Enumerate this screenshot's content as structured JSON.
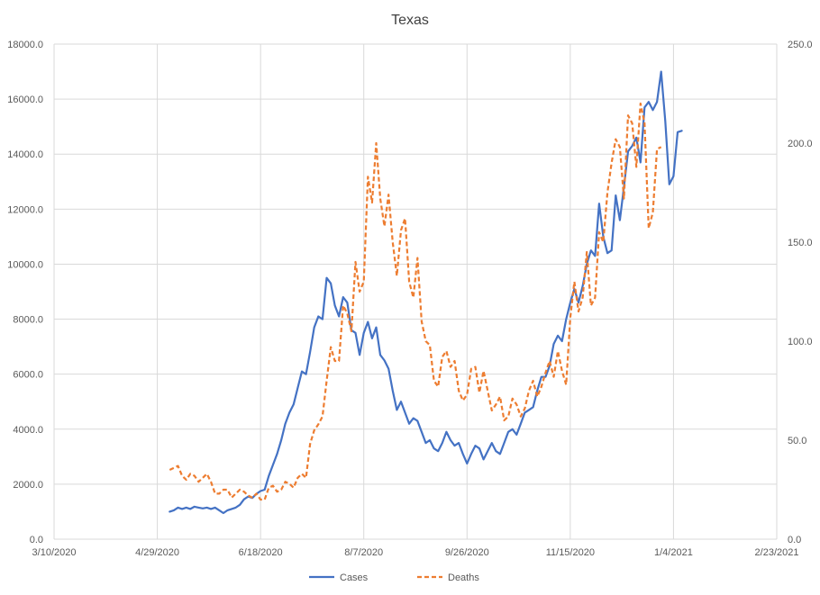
{
  "chart_data": {
    "type": "line",
    "title": "Texas",
    "grid": true,
    "legend_position": "bottom",
    "x_axis": {
      "type": "date",
      "min": "2020-03-10",
      "max": "2021-02-23",
      "tick_labels": [
        "3/10/2020",
        "4/29/2020",
        "6/18/2020",
        "8/7/2020",
        "9/26/2020",
        "11/15/2020",
        "1/4/2021",
        "2/23/2021"
      ]
    },
    "y_axis_left": {
      "min": 0,
      "max": 18000,
      "tick_labels": [
        "0.0",
        "2000.0",
        "4000.0",
        "6000.0",
        "8000.0",
        "10000.0",
        "12000.0",
        "14000.0",
        "16000.0",
        "18000.0"
      ]
    },
    "y_axis_right": {
      "min": 0,
      "max": 250,
      "tick_labels": [
        "0.0",
        "50.0",
        "100.0",
        "150.0",
        "200.0",
        "250.0"
      ]
    },
    "series": [
      {
        "name": "Cases",
        "axis": "left",
        "color": "#4472C4",
        "dash": "solid",
        "points": [
          [
            "2020-05-05",
            1000
          ],
          [
            "2020-05-07",
            1050
          ],
          [
            "2020-05-09",
            1150
          ],
          [
            "2020-05-11",
            1100
          ],
          [
            "2020-05-13",
            1150
          ],
          [
            "2020-05-15",
            1100
          ],
          [
            "2020-05-17",
            1180
          ],
          [
            "2020-05-19",
            1150
          ],
          [
            "2020-05-21",
            1120
          ],
          [
            "2020-05-23",
            1150
          ],
          [
            "2020-05-25",
            1100
          ],
          [
            "2020-05-27",
            1150
          ],
          [
            "2020-05-29",
            1050
          ],
          [
            "2020-05-31",
            950
          ],
          [
            "2020-06-02",
            1050
          ],
          [
            "2020-06-04",
            1100
          ],
          [
            "2020-06-06",
            1150
          ],
          [
            "2020-06-08",
            1250
          ],
          [
            "2020-06-10",
            1450
          ],
          [
            "2020-06-12",
            1550
          ],
          [
            "2020-06-14",
            1500
          ],
          [
            "2020-06-16",
            1650
          ],
          [
            "2020-06-18",
            1750
          ],
          [
            "2020-06-20",
            1800
          ],
          [
            "2020-06-22",
            2300
          ],
          [
            "2020-06-24",
            2700
          ],
          [
            "2020-06-26",
            3100
          ],
          [
            "2020-06-28",
            3600
          ],
          [
            "2020-06-30",
            4200
          ],
          [
            "2020-07-02",
            4600
          ],
          [
            "2020-07-04",
            4900
          ],
          [
            "2020-07-06",
            5500
          ],
          [
            "2020-07-08",
            6100
          ],
          [
            "2020-07-10",
            6000
          ],
          [
            "2020-07-12",
            6800
          ],
          [
            "2020-07-14",
            7700
          ],
          [
            "2020-07-16",
            8100
          ],
          [
            "2020-07-18",
            8000
          ],
          [
            "2020-07-20",
            9500
          ],
          [
            "2020-07-22",
            9300
          ],
          [
            "2020-07-24",
            8500
          ],
          [
            "2020-07-26",
            8100
          ],
          [
            "2020-07-28",
            8800
          ],
          [
            "2020-07-30",
            8600
          ],
          [
            "2020-08-01",
            7600
          ],
          [
            "2020-08-03",
            7500
          ],
          [
            "2020-08-05",
            6700
          ],
          [
            "2020-08-07",
            7500
          ],
          [
            "2020-08-09",
            7900
          ],
          [
            "2020-08-11",
            7300
          ],
          [
            "2020-08-13",
            7700
          ],
          [
            "2020-08-15",
            6700
          ],
          [
            "2020-08-17",
            6500
          ],
          [
            "2020-08-19",
            6200
          ],
          [
            "2020-08-21",
            5400
          ],
          [
            "2020-08-23",
            4700
          ],
          [
            "2020-08-25",
            5000
          ],
          [
            "2020-08-27",
            4600
          ],
          [
            "2020-08-29",
            4200
          ],
          [
            "2020-08-31",
            4400
          ],
          [
            "2020-09-02",
            4300
          ],
          [
            "2020-09-04",
            3900
          ],
          [
            "2020-09-06",
            3500
          ],
          [
            "2020-09-08",
            3600
          ],
          [
            "2020-09-10",
            3300
          ],
          [
            "2020-09-12",
            3200
          ],
          [
            "2020-09-14",
            3500
          ],
          [
            "2020-09-16",
            3900
          ],
          [
            "2020-09-18",
            3600
          ],
          [
            "2020-09-20",
            3400
          ],
          [
            "2020-09-22",
            3500
          ],
          [
            "2020-09-24",
            3100
          ],
          [
            "2020-09-26",
            2750
          ],
          [
            "2020-09-28",
            3100
          ],
          [
            "2020-09-30",
            3400
          ],
          [
            "2020-10-02",
            3300
          ],
          [
            "2020-10-04",
            2900
          ],
          [
            "2020-10-06",
            3200
          ],
          [
            "2020-10-08",
            3500
          ],
          [
            "2020-10-10",
            3200
          ],
          [
            "2020-10-12",
            3100
          ],
          [
            "2020-10-14",
            3500
          ],
          [
            "2020-10-16",
            3900
          ],
          [
            "2020-10-18",
            4000
          ],
          [
            "2020-10-20",
            3800
          ],
          [
            "2020-10-22",
            4200
          ],
          [
            "2020-10-24",
            4600
          ],
          [
            "2020-10-26",
            4700
          ],
          [
            "2020-10-28",
            4800
          ],
          [
            "2020-10-30",
            5400
          ],
          [
            "2020-11-01",
            5900
          ],
          [
            "2020-11-03",
            5900
          ],
          [
            "2020-11-05",
            6300
          ],
          [
            "2020-11-07",
            7100
          ],
          [
            "2020-11-09",
            7400
          ],
          [
            "2020-11-11",
            7200
          ],
          [
            "2020-11-13",
            8000
          ],
          [
            "2020-11-15",
            8600
          ],
          [
            "2020-11-17",
            9100
          ],
          [
            "2020-11-19",
            8600
          ],
          [
            "2020-11-21",
            9200
          ],
          [
            "2020-11-23",
            10000
          ],
          [
            "2020-11-25",
            10500
          ],
          [
            "2020-11-27",
            10300
          ],
          [
            "2020-11-29",
            12200
          ],
          [
            "2020-12-01",
            11000
          ],
          [
            "2020-12-03",
            10400
          ],
          [
            "2020-12-05",
            10500
          ],
          [
            "2020-12-07",
            12500
          ],
          [
            "2020-12-09",
            11600
          ],
          [
            "2020-12-11",
            12800
          ],
          [
            "2020-12-13",
            14100
          ],
          [
            "2020-12-15",
            14300
          ],
          [
            "2020-12-17",
            14600
          ],
          [
            "2020-12-19",
            13700
          ],
          [
            "2020-12-21",
            15700
          ],
          [
            "2020-12-23",
            15900
          ],
          [
            "2020-12-25",
            15600
          ],
          [
            "2020-12-27",
            15900
          ],
          [
            "2020-12-29",
            17000
          ],
          [
            "2020-12-31",
            15200
          ],
          [
            "2021-01-02",
            12900
          ],
          [
            "2021-01-04",
            13200
          ],
          [
            "2021-01-06",
            14800
          ],
          [
            "2021-01-08",
            14850
          ]
        ]
      },
      {
        "name": "Deaths",
        "axis": "right",
        "color": "#ED7D31",
        "dash": "dashed",
        "points": [
          [
            "2020-05-05",
            35
          ],
          [
            "2020-05-07",
            36
          ],
          [
            "2020-05-09",
            37
          ],
          [
            "2020-05-11",
            32
          ],
          [
            "2020-05-13",
            30
          ],
          [
            "2020-05-15",
            33
          ],
          [
            "2020-05-17",
            32
          ],
          [
            "2020-05-19",
            29
          ],
          [
            "2020-05-21",
            31
          ],
          [
            "2020-05-23",
            33
          ],
          [
            "2020-05-25",
            29
          ],
          [
            "2020-05-27",
            23
          ],
          [
            "2020-05-29",
            23
          ],
          [
            "2020-05-31",
            25
          ],
          [
            "2020-06-02",
            25
          ],
          [
            "2020-06-04",
            21
          ],
          [
            "2020-06-06",
            23
          ],
          [
            "2020-06-08",
            25
          ],
          [
            "2020-06-10",
            24
          ],
          [
            "2020-06-12",
            22
          ],
          [
            "2020-06-14",
            21
          ],
          [
            "2020-06-16",
            23
          ],
          [
            "2020-06-18",
            20
          ],
          [
            "2020-06-20",
            20
          ],
          [
            "2020-06-22",
            26
          ],
          [
            "2020-06-24",
            27
          ],
          [
            "2020-06-26",
            24
          ],
          [
            "2020-06-28",
            25
          ],
          [
            "2020-06-30",
            29
          ],
          [
            "2020-07-02",
            28
          ],
          [
            "2020-07-04",
            26
          ],
          [
            "2020-07-06",
            31
          ],
          [
            "2020-07-08",
            33
          ],
          [
            "2020-07-10",
            31
          ],
          [
            "2020-07-12",
            48
          ],
          [
            "2020-07-14",
            55
          ],
          [
            "2020-07-16",
            58
          ],
          [
            "2020-07-18",
            62
          ],
          [
            "2020-07-20",
            80
          ],
          [
            "2020-07-22",
            97
          ],
          [
            "2020-07-24",
            90
          ],
          [
            "2020-07-26",
            90
          ],
          [
            "2020-07-28",
            118
          ],
          [
            "2020-07-30",
            114
          ],
          [
            "2020-08-01",
            105
          ],
          [
            "2020-08-03",
            140
          ],
          [
            "2020-08-05",
            125
          ],
          [
            "2020-08-07",
            130
          ],
          [
            "2020-08-09",
            183
          ],
          [
            "2020-08-11",
            170
          ],
          [
            "2020-08-13",
            200
          ],
          [
            "2020-08-15",
            172
          ],
          [
            "2020-08-17",
            158
          ],
          [
            "2020-08-19",
            174
          ],
          [
            "2020-08-21",
            150
          ],
          [
            "2020-08-23",
            133
          ],
          [
            "2020-08-25",
            156
          ],
          [
            "2020-08-27",
            162
          ],
          [
            "2020-08-29",
            130
          ],
          [
            "2020-08-31",
            122
          ],
          [
            "2020-09-02",
            142
          ],
          [
            "2020-09-04",
            110
          ],
          [
            "2020-09-06",
            100
          ],
          [
            "2020-09-08",
            98
          ],
          [
            "2020-09-10",
            80
          ],
          [
            "2020-09-12",
            77
          ],
          [
            "2020-09-14",
            92
          ],
          [
            "2020-09-16",
            95
          ],
          [
            "2020-09-18",
            87
          ],
          [
            "2020-09-20",
            90
          ],
          [
            "2020-09-22",
            75
          ],
          [
            "2020-09-24",
            70
          ],
          [
            "2020-09-26",
            73
          ],
          [
            "2020-09-28",
            86
          ],
          [
            "2020-09-30",
            87
          ],
          [
            "2020-10-02",
            74
          ],
          [
            "2020-10-04",
            85
          ],
          [
            "2020-10-06",
            75
          ],
          [
            "2020-10-08",
            65
          ],
          [
            "2020-10-10",
            68
          ],
          [
            "2020-10-12",
            72
          ],
          [
            "2020-10-14",
            60
          ],
          [
            "2020-10-16",
            62
          ],
          [
            "2020-10-18",
            71
          ],
          [
            "2020-10-20",
            68
          ],
          [
            "2020-10-22",
            62
          ],
          [
            "2020-10-24",
            66
          ],
          [
            "2020-10-26",
            75
          ],
          [
            "2020-10-28",
            80
          ],
          [
            "2020-10-30",
            72
          ],
          [
            "2020-11-01",
            77
          ],
          [
            "2020-11-03",
            84
          ],
          [
            "2020-11-05",
            90
          ],
          [
            "2020-11-07",
            82
          ],
          [
            "2020-11-09",
            95
          ],
          [
            "2020-11-11",
            85
          ],
          [
            "2020-11-13",
            78
          ],
          [
            "2020-11-15",
            112
          ],
          [
            "2020-11-17",
            130
          ],
          [
            "2020-11-19",
            115
          ],
          [
            "2020-11-21",
            122
          ],
          [
            "2020-11-23",
            145
          ],
          [
            "2020-11-25",
            118
          ],
          [
            "2020-11-27",
            122
          ],
          [
            "2020-11-29",
            155
          ],
          [
            "2020-12-01",
            150
          ],
          [
            "2020-12-03",
            175
          ],
          [
            "2020-12-05",
            190
          ],
          [
            "2020-12-07",
            202
          ],
          [
            "2020-12-09",
            198
          ],
          [
            "2020-12-11",
            172
          ],
          [
            "2020-12-13",
            214
          ],
          [
            "2020-12-15",
            210
          ],
          [
            "2020-12-17",
            188
          ],
          [
            "2020-12-19",
            220
          ],
          [
            "2020-12-21",
            210
          ],
          [
            "2020-12-23",
            157
          ],
          [
            "2020-12-25",
            165
          ],
          [
            "2020-12-27",
            197
          ],
          [
            "2020-12-29",
            198
          ]
        ]
      }
    ]
  }
}
